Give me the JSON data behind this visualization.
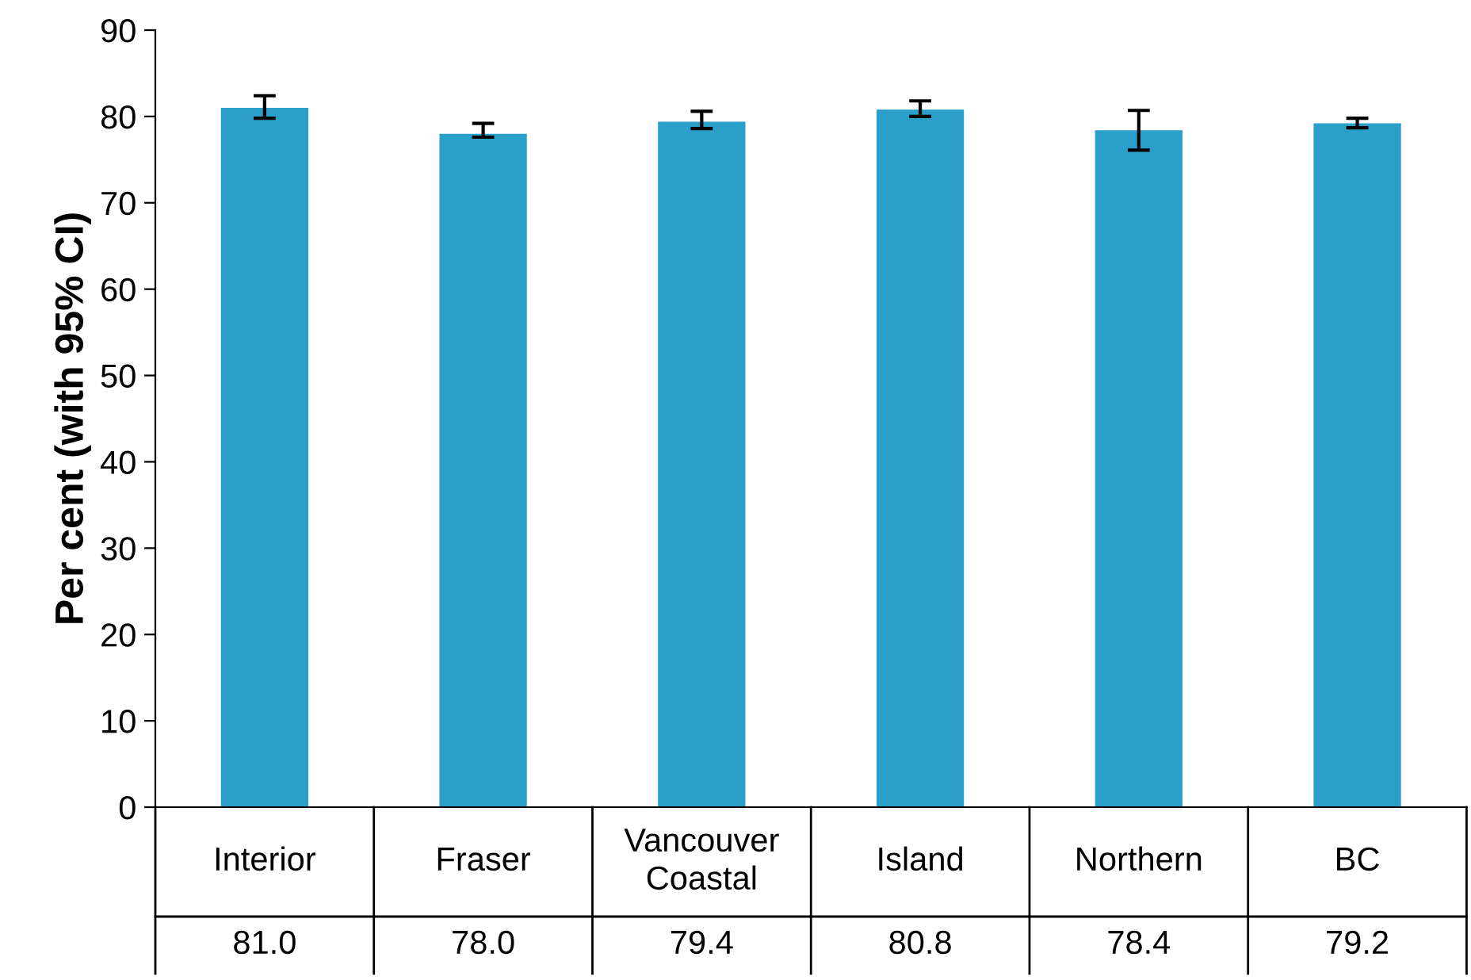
{
  "chart_data": {
    "type": "bar",
    "ylabel": "Per cent (with 95% CI)",
    "categories": [
      "Interior",
      "Fraser",
      "Vancouver\nCoastal",
      "Island",
      "Northern",
      "BC"
    ],
    "values": [
      81.0,
      78.0,
      79.4,
      80.8,
      78.4,
      79.2
    ],
    "errors": [
      [
        79.8,
        82.4
      ],
      [
        77.6,
        79.2
      ],
      [
        78.6,
        80.6
      ],
      [
        80.0,
        81.8
      ],
      [
        76.1,
        80.7
      ],
      [
        78.7,
        79.8
      ]
    ],
    "color": "#2a9fc9",
    "value_labels": [
      "81.0",
      "78.0",
      "79.4",
      "80.8",
      "78.4",
      "79.2"
    ],
    "ylim": [
      0,
      90
    ],
    "yticks": [
      0,
      10,
      20,
      30,
      40,
      50,
      60,
      70,
      80,
      90
    ],
    "grid": false
  }
}
